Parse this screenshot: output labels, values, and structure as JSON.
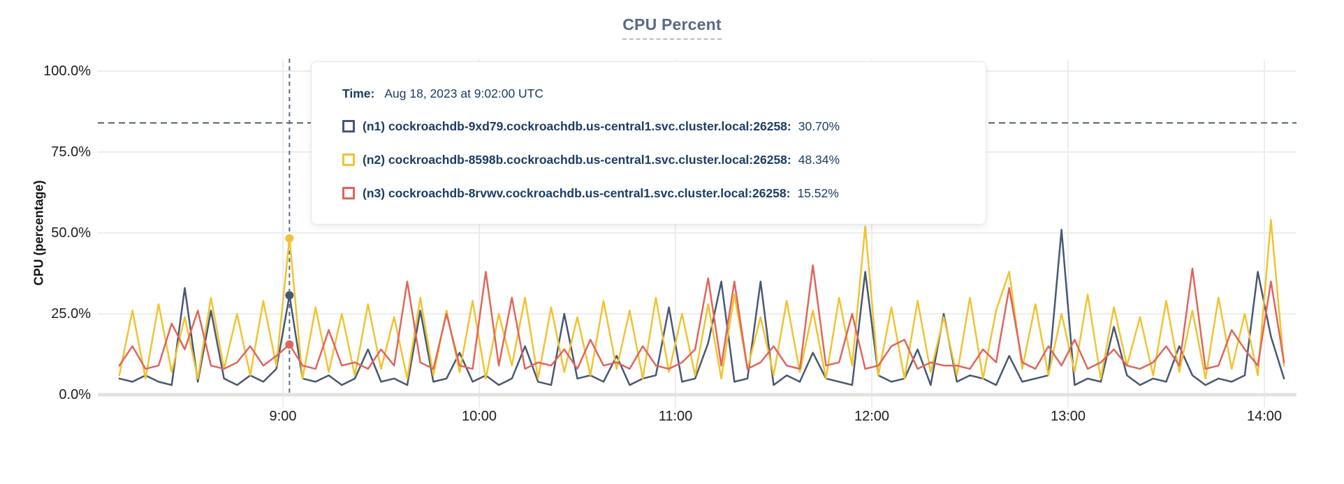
{
  "page": {
    "background": "#ffffff"
  },
  "tooltip": {
    "time_label": "Time:",
    "time_value": "Aug 18, 2023 at 9:02:00 UTC",
    "rows": [
      {
        "label": "(n1) cockroachdb-9xd79.cockroachdb.us-central1.svc.cluster.local:26258:",
        "value": "30.70%",
        "color": "#475872"
      },
      {
        "label": "(n2) cockroachdb-8598b.cockroachdb.us-central1.svc.cluster.local:26258:",
        "value": "48.34%",
        "color": "#f0c330"
      },
      {
        "label": "(n3) cockroachdb-8rvwv.cockroachdb.us-central1.svc.cluster.local:26258:",
        "value": "15.52%",
        "color": "#e0655c"
      }
    ]
  },
  "chart_data": {
    "type": "line",
    "title": "CPU Percent",
    "ylabel": "CPU (percentage)",
    "xlabel": "",
    "ylim": [
      0,
      100
    ],
    "grid": true,
    "legend_position": "tooltip",
    "y_tick_values": [
      100,
      75,
      50,
      25,
      0
    ],
    "y_tick_labels": [
      "100.0%",
      "75.0%",
      "50.0%",
      "25.0%",
      "0.0%"
    ],
    "x_tick_hours": [
      9,
      10,
      11,
      12,
      13,
      14
    ],
    "x_tick_labels": [
      "9:00",
      "10:00",
      "11:00",
      "12:00",
      "13:00",
      "14:00"
    ],
    "x_start_hour": 8.1667,
    "x_step_minutes": 4,
    "threshold_percent": 84,
    "cursor": {
      "index": 13,
      "hour": 9.0333,
      "time": "Aug 18, 2023 at 9:02:00 UTC"
    },
    "series": [
      {
        "id": "n1",
        "name": "(n1) cockroachdb-9xd79.cockroachdb.us-central1.svc.cluster.local:26258",
        "color": "#475872",
        "value_at_cursor": 30.7,
        "values": [
          5,
          4,
          6,
          4,
          3,
          33,
          4,
          26,
          5,
          3,
          6,
          4,
          8,
          30.7,
          5,
          4,
          6,
          3,
          5,
          14,
          4,
          5,
          3,
          26,
          4,
          5,
          13,
          4,
          6,
          3,
          5,
          15,
          4,
          3,
          25,
          5,
          6,
          4,
          12,
          3,
          5,
          6,
          27,
          4,
          5,
          16,
          35,
          4,
          5,
          35,
          3,
          6,
          4,
          13,
          5,
          4,
          3,
          38,
          6,
          4,
          5,
          14,
          3,
          25,
          4,
          6,
          5,
          3,
          12,
          4,
          5,
          6,
          51,
          3,
          5,
          4,
          21,
          6,
          3,
          5,
          4,
          15,
          6,
          3,
          5,
          4,
          6,
          38,
          18,
          5
        ]
      },
      {
        "id": "n2",
        "name": "(n2) cockroachdb-8598b.cockroachdb.us-central1.svc.cluster.local:26258",
        "color": "#f0c330",
        "value_at_cursor": 48.34,
        "values": [
          6,
          26,
          5,
          28,
          7,
          24,
          5,
          30,
          8,
          25,
          6,
          29,
          9,
          48.34,
          5,
          27,
          7,
          25,
          6,
          28,
          8,
          24,
          5,
          30,
          6,
          26,
          7,
          29,
          5,
          25,
          9,
          30,
          5,
          27,
          7,
          24,
          6,
          29,
          8,
          26,
          5,
          30,
          7,
          25,
          6,
          28,
          5,
          31,
          8,
          24,
          6,
          29,
          7,
          26,
          5,
          30,
          9,
          52,
          6,
          27,
          5,
          29,
          7,
          24,
          6,
          30,
          5,
          26,
          38,
          8,
          28,
          6,
          25,
          7,
          31,
          5,
          27,
          9,
          24,
          6,
          29,
          7,
          26,
          5,
          30,
          8,
          25,
          6,
          54,
          9
        ]
      },
      {
        "id": "n3",
        "name": "(n3) cockroachdb-8rvwv.cockroachdb.us-central1.svc.cluster.local:26258",
        "color": "#e0655c",
        "value_at_cursor": 15.52,
        "values": [
          9,
          15,
          8,
          9,
          22,
          14,
          26,
          9,
          8,
          10,
          15,
          9,
          12,
          15.52,
          9,
          8,
          20,
          9,
          10,
          8,
          14,
          9,
          35,
          10,
          8,
          25,
          9,
          8,
          38,
          9,
          30,
          8,
          10,
          9,
          14,
          8,
          17,
          9,
          10,
          8,
          15,
          9,
          8,
          10,
          14,
          36,
          9,
          35,
          8,
          10,
          15,
          9,
          8,
          40,
          9,
          10,
          25,
          8,
          9,
          15,
          17,
          8,
          10,
          9,
          9,
          8,
          14,
          10,
          33,
          10,
          8,
          15,
          9,
          17,
          8,
          10,
          14,
          9,
          8,
          10,
          15,
          9,
          39,
          8,
          9,
          20,
          14,
          9,
          35,
          10
        ]
      }
    ]
  }
}
